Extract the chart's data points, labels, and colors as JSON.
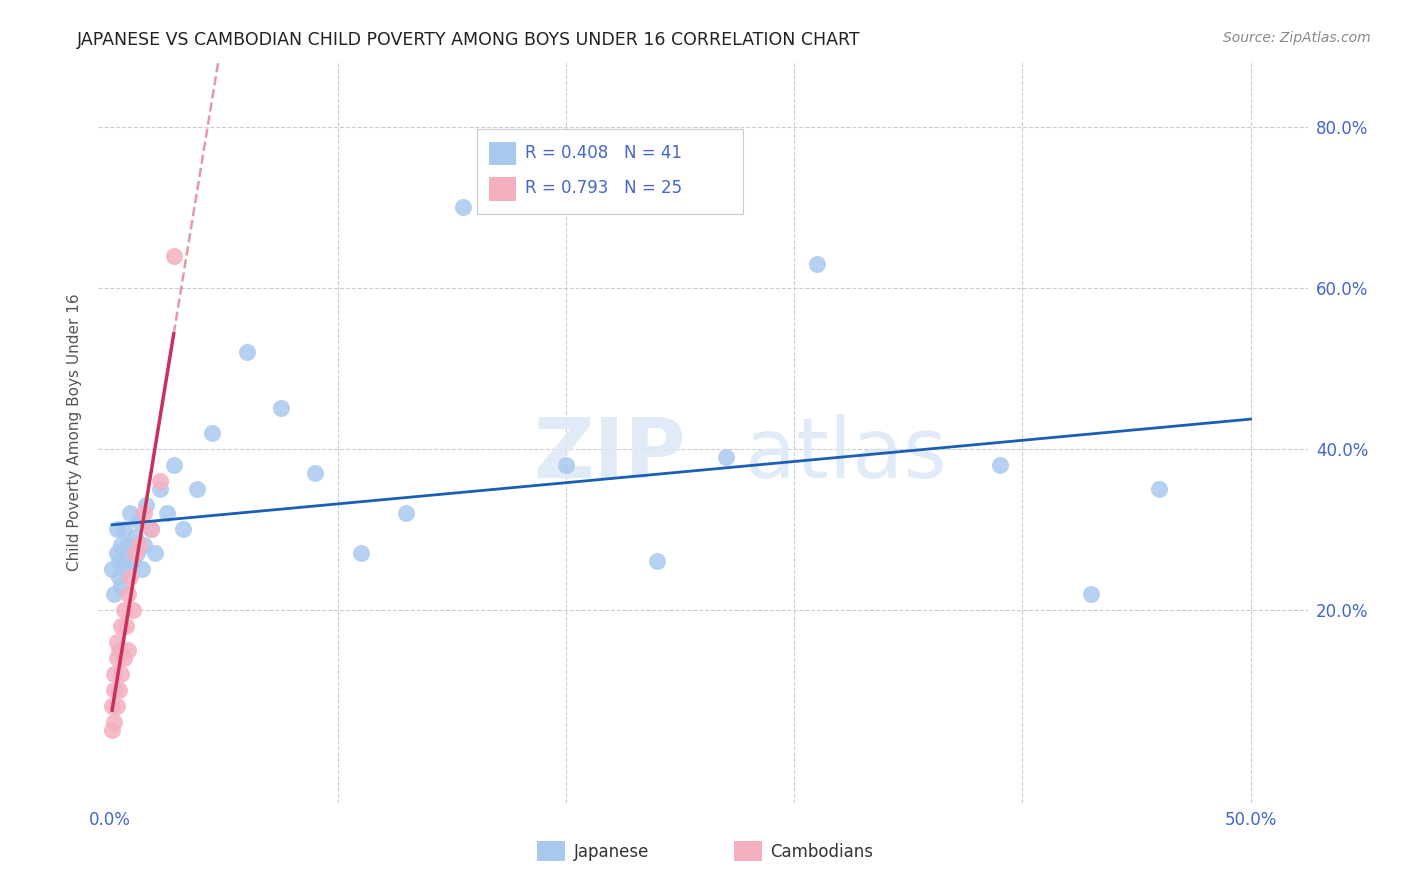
{
  "title": "JAPANESE VS CAMBODIAN CHILD POVERTY AMONG BOYS UNDER 16 CORRELATION CHART",
  "source": "Source: ZipAtlas.com",
  "ylabel": "Child Poverty Among Boys Under 16",
  "blue_color": "#a8c8ee",
  "pink_color": "#f5b0c0",
  "blue_line_color": "#1a5fb4",
  "pink_line_color": "#c8325a",
  "axis_tick_color": "#4466cc",
  "title_color": "#222222",
  "grid_color": "#cccccc",
  "legend_r1": "R = 0.408   N = 41",
  "legend_r2": "R = 0.793   N = 25",
  "legend_label1": "Japanese",
  "legend_label2": "Cambodians",
  "jp_r": 0.408,
  "jp_n": 41,
  "cam_r": 0.793,
  "cam_n": 25,
  "jp_x": [
    0.001,
    0.002,
    0.003,
    0.003,
    0.004,
    0.004,
    0.005,
    0.005,
    0.006,
    0.006,
    0.007,
    0.008,
    0.009,
    0.01,
    0.011,
    0.012,
    0.013,
    0.014,
    0.015,
    0.016,
    0.018,
    0.02,
    0.022,
    0.025,
    0.028,
    0.032,
    0.038,
    0.045,
    0.06,
    0.075,
    0.09,
    0.11,
    0.13,
    0.155,
    0.2,
    0.24,
    0.27,
    0.31,
    0.39,
    0.43,
    0.46
  ],
  "jp_y": [
    0.25,
    0.22,
    0.27,
    0.3,
    0.24,
    0.26,
    0.28,
    0.23,
    0.26,
    0.3,
    0.25,
    0.28,
    0.32,
    0.26,
    0.29,
    0.27,
    0.31,
    0.25,
    0.28,
    0.33,
    0.3,
    0.27,
    0.35,
    0.32,
    0.38,
    0.3,
    0.35,
    0.42,
    0.52,
    0.45,
    0.37,
    0.27,
    0.32,
    0.7,
    0.38,
    0.26,
    0.39,
    0.63,
    0.38,
    0.22,
    0.35
  ],
  "cam_x": [
    0.001,
    0.001,
    0.002,
    0.002,
    0.002,
    0.003,
    0.003,
    0.003,
    0.004,
    0.004,
    0.005,
    0.005,
    0.006,
    0.006,
    0.007,
    0.008,
    0.008,
    0.009,
    0.01,
    0.011,
    0.013,
    0.015,
    0.018,
    0.022,
    0.028
  ],
  "cam_y": [
    0.05,
    0.08,
    0.06,
    0.1,
    0.12,
    0.08,
    0.14,
    0.16,
    0.1,
    0.15,
    0.12,
    0.18,
    0.14,
    0.2,
    0.18,
    0.22,
    0.15,
    0.24,
    0.2,
    0.27,
    0.28,
    0.32,
    0.3,
    0.36,
    0.64
  ],
  "xlim_min": -0.005,
  "xlim_max": 0.525,
  "ylim_min": -0.04,
  "ylim_max": 0.88,
  "xtick_positions": [
    0.0,
    0.1,
    0.2,
    0.3,
    0.4,
    0.5
  ],
  "xtick_labels_show": [
    "0.0%",
    "",
    "",
    "",
    "",
    "50.0%"
  ],
  "ytick_positions": [
    0.0,
    0.2,
    0.4,
    0.6,
    0.8
  ],
  "ytick_labels_right": [
    "",
    "20.0%",
    "40.0%",
    "60.0%",
    "80.0%"
  ]
}
